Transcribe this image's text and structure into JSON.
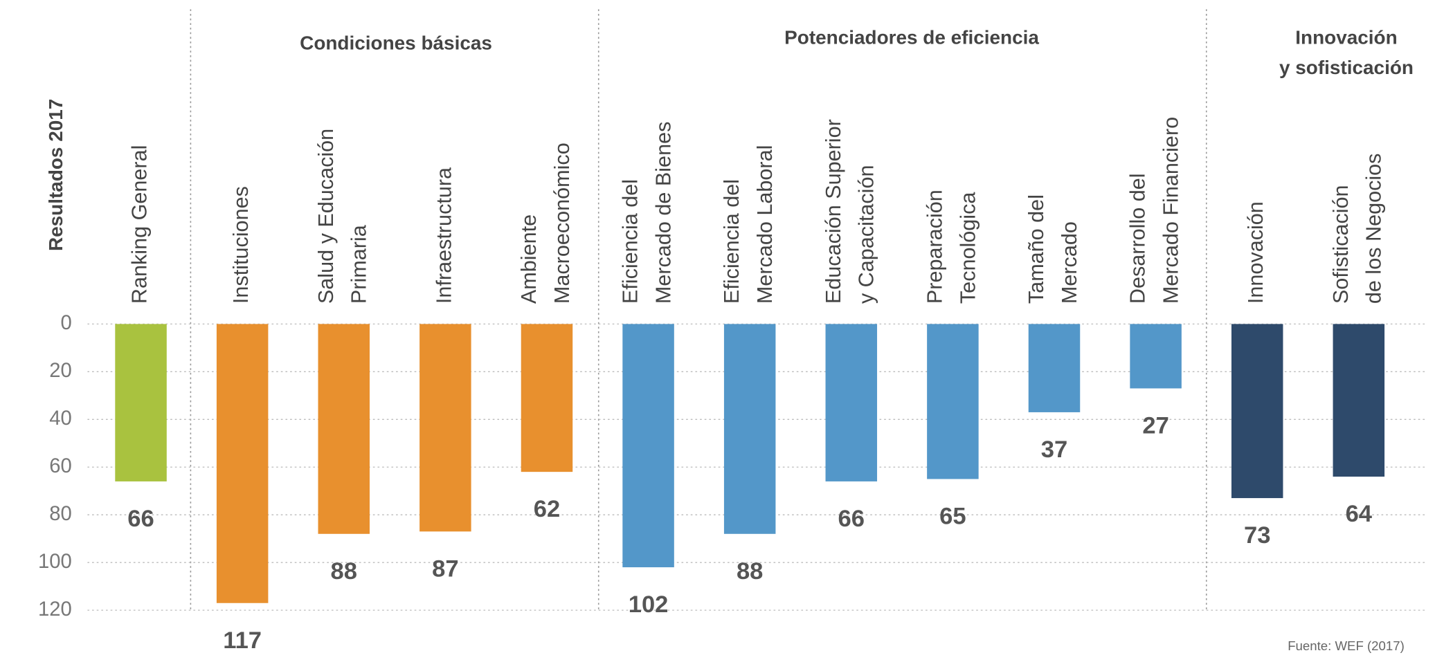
{
  "chart_data": {
    "type": "bar",
    "y_axis_label": "Resultados 2017",
    "inverted": true,
    "groups": [
      [
        "Condiciones básicas"
      ],
      [
        "Potenciadores de eficiencia"
      ],
      [
        "Innovación",
        "y sofisticación"
      ]
    ],
    "categories": [
      [
        "Ranking General"
      ],
      [
        "Instituciones"
      ],
      [
        "Salud y Educación",
        "Primaria"
      ],
      [
        "Infraestructura"
      ],
      [
        "Ambiente",
        "Macroeconómico"
      ],
      [
        "Eficiencia del",
        "Mercado de Bienes"
      ],
      [
        "Eficiencia del",
        "Mercado Laboral"
      ],
      [
        "Educación Superior",
        "y Capacitación"
      ],
      [
        "Preparación",
        "Tecnológica"
      ],
      [
        "Tamaño del",
        "Mercado"
      ],
      [
        "Desarrollo del",
        "Mercado Financiero"
      ],
      [
        "Innovación"
      ],
      [
        "Sofisticación",
        "de los Negocios"
      ]
    ],
    "values": [
      66,
      117,
      88,
      87,
      62,
      102,
      88,
      66,
      65,
      37,
      27,
      73,
      64
    ],
    "colors": [
      "#a9c23f",
      "#e8902e",
      "#e8902e",
      "#e8902e",
      "#e8902e",
      "#5397c9",
      "#5397c9",
      "#5397c9",
      "#5397c9",
      "#5397c9",
      "#5397c9",
      "#2e4a6b",
      "#2e4a6b"
    ],
    "ylim": [
      0,
      120
    ],
    "yticks": [
      0,
      20,
      40,
      60,
      80,
      100,
      120
    ],
    "grid": true,
    "source": "Fuente: WEF (2017)"
  }
}
